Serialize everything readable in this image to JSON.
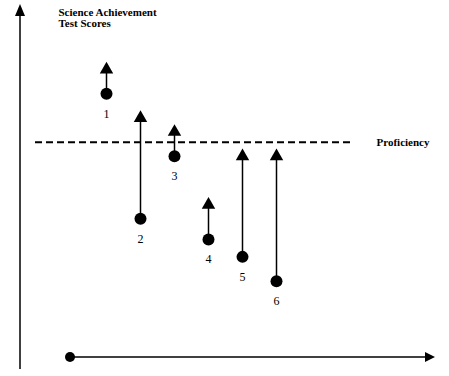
{
  "chart_data": {
    "type": "arrow",
    "y_label": "Science Achievement\nTest Scores",
    "categories": [
      "1",
      "2",
      "3",
      "4",
      "5",
      "6"
    ],
    "values": [
      76,
      40,
      58,
      34,
      29,
      22
    ],
    "end_values": [
      83,
      69,
      65,
      44,
      58,
      58
    ],
    "reference_line": {
      "value": 62,
      "label": "Proficiency"
    },
    "ylim": [
      0,
      100
    ],
    "yticks": [],
    "tick_labels": false,
    "color": "#000000"
  }
}
